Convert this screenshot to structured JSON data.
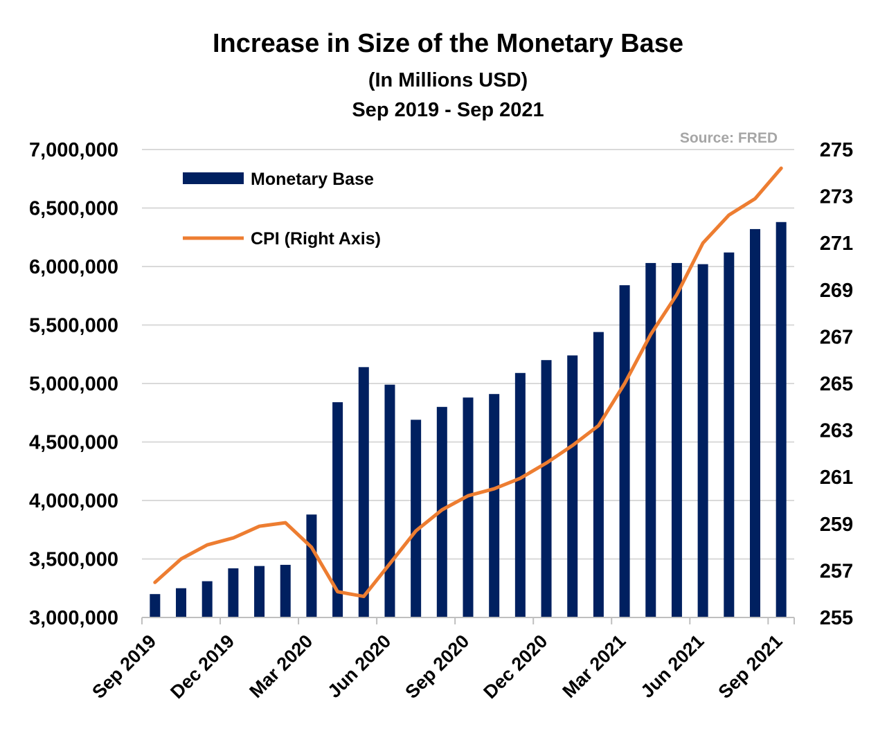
{
  "chart_data": {
    "type": "bar",
    "title": "Increase in Size of the Monetary Base",
    "subtitle_lines": [
      "(In Millions USD)",
      "Sep 2019 - Sep 2021"
    ],
    "source": "Source: FRED",
    "x_tick_labels": [
      "Sep 2019",
      "Dec 2019",
      "Mar 2020",
      "Jun 2020",
      "Sep 2020",
      "Dec 2020",
      "Mar 2021",
      "Jun 2021",
      "Sep 2021"
    ],
    "left_axis": {
      "ylim": [
        3000000,
        7000000
      ],
      "tick_labels": [
        "3,000,000",
        "3,500,000",
        "4,000,000",
        "4,500,000",
        "5,000,000",
        "5,500,000",
        "6,000,000",
        "6,500,000",
        "7,000,000"
      ]
    },
    "right_axis": {
      "ylim": [
        255,
        275
      ],
      "tick_labels": [
        "255",
        "257",
        "259",
        "261",
        "263",
        "265",
        "267",
        "269",
        "271",
        "273",
        "275"
      ]
    },
    "legend": {
      "placement": "top-left"
    },
    "series": [
      {
        "name": "Monetary Base",
        "type": "bar",
        "axis": "left",
        "color": "#002060",
        "values": [
          3200000,
          3250000,
          3310000,
          3420000,
          3440000,
          3450000,
          3880000,
          4840000,
          5140000,
          4990000,
          4690000,
          4800000,
          4880000,
          4910000,
          5090000,
          5200000,
          5240000,
          5440000,
          5840000,
          6030000,
          6030000,
          6020000,
          6120000,
          6320000,
          6380000
        ]
      },
      {
        "name": "CPI (Right Axis)",
        "type": "line",
        "axis": "right",
        "color": "#ed7d31",
        "values": [
          256.5,
          257.5,
          258.1,
          258.4,
          258.9,
          259.05,
          258.0,
          256.1,
          255.9,
          257.3,
          258.7,
          259.6,
          260.2,
          260.5,
          260.95,
          261.6,
          262.35,
          263.2,
          265.0,
          267.1,
          268.8,
          271.0,
          272.2,
          272.9,
          274.2
        ]
      }
    ]
  }
}
